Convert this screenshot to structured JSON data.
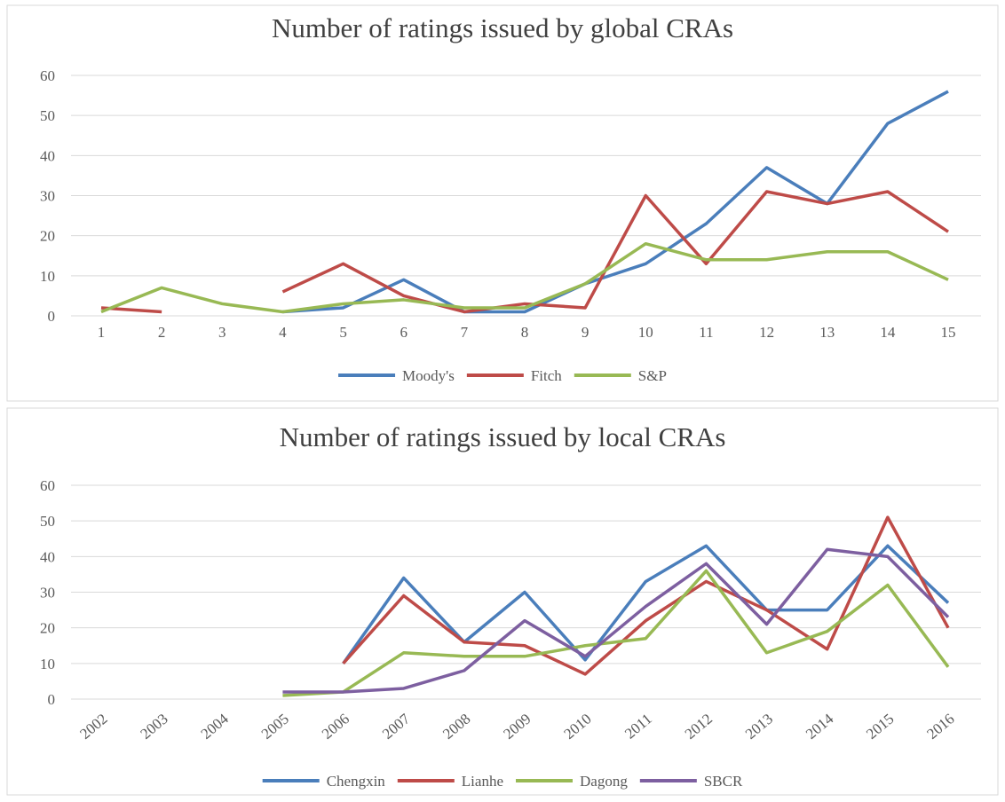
{
  "chart_data": [
    {
      "type": "line",
      "title": "Number of ratings issued by global CRAs",
      "categories": [
        1,
        2,
        3,
        4,
        5,
        6,
        7,
        8,
        9,
        10,
        11,
        12,
        13,
        14,
        15
      ],
      "ylim": [
        0,
        60
      ],
      "yticks": [
        0,
        10,
        20,
        30,
        40,
        50,
        60
      ],
      "grid": true,
      "legend": "bottom",
      "series": [
        {
          "name": "Moody's",
          "color": "#4a7ebb",
          "values": [
            null,
            null,
            null,
            1,
            2,
            9,
            1,
            1,
            8,
            13,
            23,
            37,
            28,
            48,
            56
          ]
        },
        {
          "name": "Fitch",
          "color": "#be4b48",
          "values": [
            2,
            1,
            null,
            6,
            13,
            5,
            1,
            3,
            2,
            30,
            13,
            31,
            28,
            31,
            21
          ]
        },
        {
          "name": "S&P",
          "color": "#98b954",
          "values": [
            1,
            7,
            3,
            1,
            3,
            4,
            2,
            2,
            8,
            18,
            14,
            14,
            16,
            16,
            9
          ]
        }
      ]
    },
    {
      "type": "line",
      "title": "Number of ratings issued by local CRAs",
      "categories": [
        2002,
        2003,
        2004,
        2005,
        2006,
        2007,
        2008,
        2009,
        2010,
        2011,
        2012,
        2013,
        2014,
        2015,
        2016
      ],
      "ylim": [
        0,
        60
      ],
      "yticks": [
        0,
        10,
        20,
        30,
        40,
        50,
        60
      ],
      "grid": true,
      "legend": "bottom",
      "series": [
        {
          "name": "Chengxin",
          "color": "#4a7ebb",
          "values": [
            null,
            null,
            null,
            null,
            10,
            34,
            16,
            30,
            11,
            33,
            43,
            25,
            25,
            43,
            27
          ]
        },
        {
          "name": "Lianhe",
          "color": "#be4b48",
          "values": [
            null,
            null,
            null,
            null,
            10,
            29,
            16,
            15,
            7,
            22,
            33,
            25,
            14,
            51,
            20
          ]
        },
        {
          "name": "Dagong",
          "color": "#98b954",
          "values": [
            null,
            null,
            null,
            1,
            2,
            13,
            12,
            12,
            15,
            17,
            36,
            13,
            19,
            32,
            9
          ]
        },
        {
          "name": "SBCR",
          "color": "#7d5fa0",
          "values": [
            null,
            null,
            null,
            2,
            2,
            3,
            8,
            22,
            12,
            26,
            38,
            21,
            42,
            40,
            23
          ]
        }
      ]
    }
  ]
}
